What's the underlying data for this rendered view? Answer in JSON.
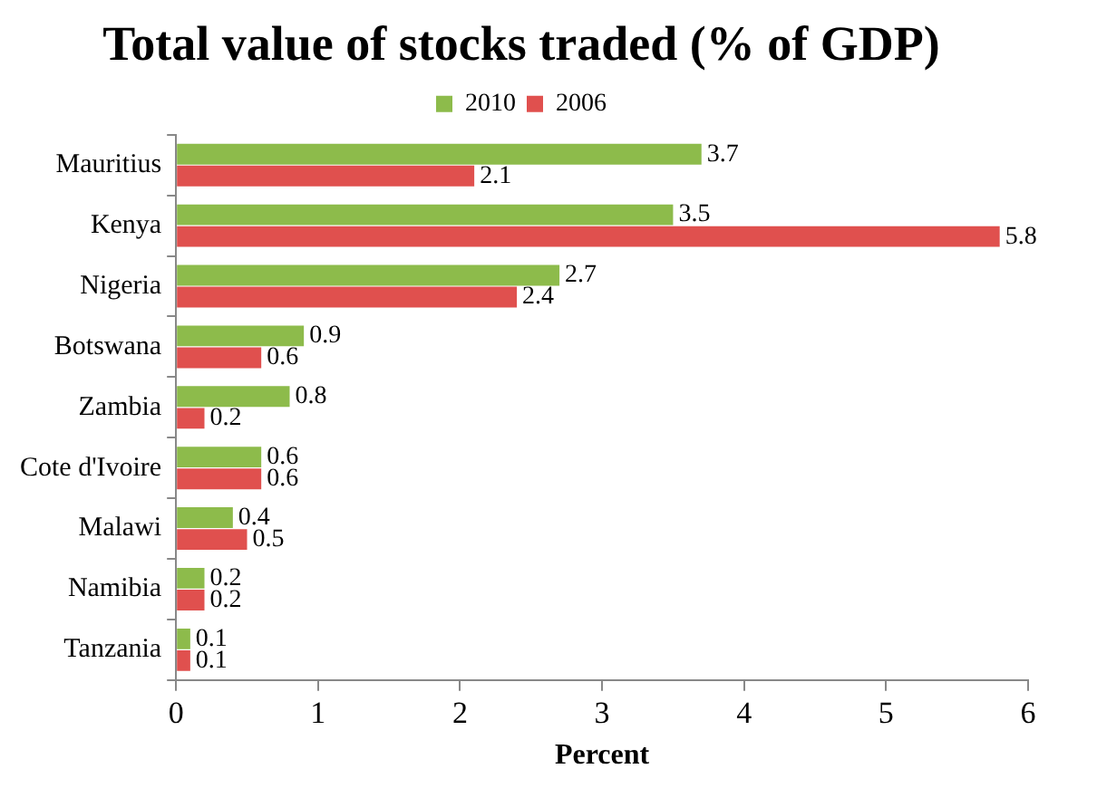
{
  "chart_data": {
    "type": "bar",
    "orientation": "horizontal",
    "title": "Total value of stocks traded (% of GDP)",
    "xlabel": "Percent",
    "categories": [
      "Mauritius",
      "Kenya",
      "Nigeria",
      "Botswana",
      "Zambia",
      "Cote d'Ivoire",
      "Malawi",
      "Namibia",
      "Tanzania"
    ],
    "series": [
      {
        "name": "2010",
        "color": "#8dbb4b",
        "values": [
          3.7,
          3.5,
          2.7,
          0.9,
          0.8,
          0.6,
          0.4,
          0.2,
          0.1
        ]
      },
      {
        "name": "2006",
        "color": "#e0504e",
        "values": [
          2.1,
          5.8,
          2.4,
          0.6,
          0.2,
          0.6,
          0.5,
          0.2,
          0.1
        ]
      }
    ],
    "xlim": [
      0,
      6
    ],
    "xticks": [
      0,
      1,
      2,
      3,
      4,
      5,
      6
    ],
    "grid": false,
    "legend": "top",
    "data_labels": true
  }
}
